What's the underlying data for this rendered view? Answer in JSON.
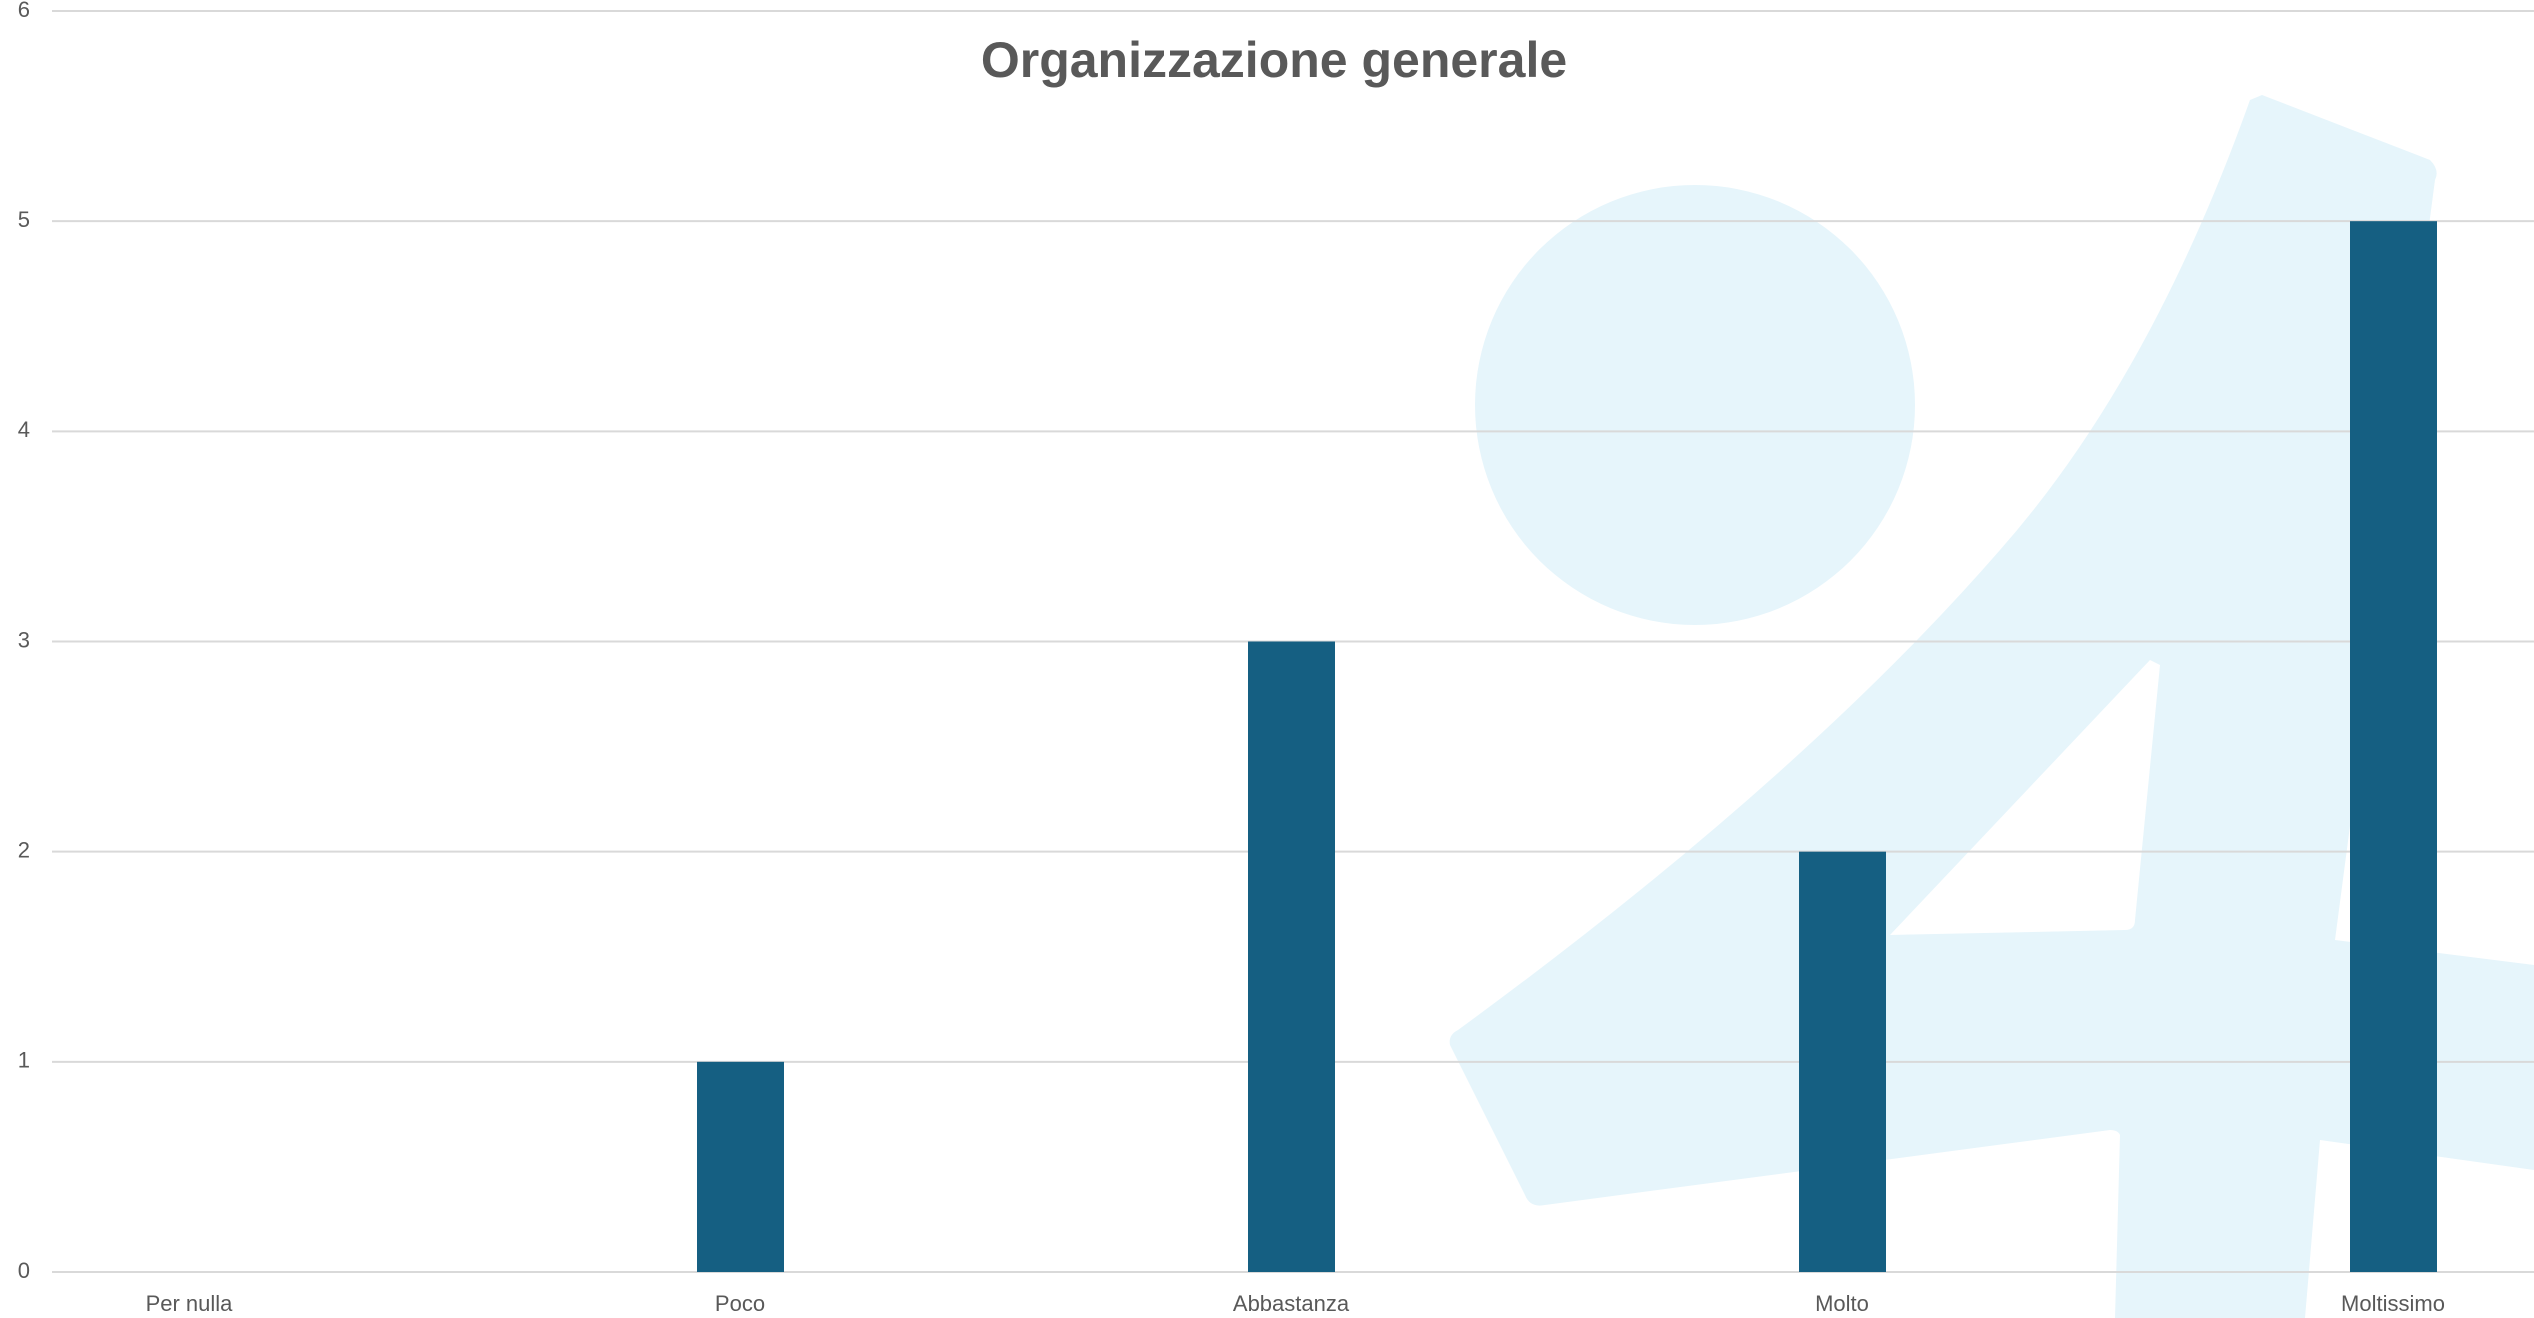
{
  "chart_data": {
    "type": "bar",
    "title": "Organizzazione generale",
    "categories": [
      "Per nulla",
      "Poco",
      "Abbastanza",
      "Molto",
      "Moltissimo"
    ],
    "values": [
      0,
      1,
      3,
      2,
      5
    ],
    "color": "#155f82",
    "ylim": [
      0,
      6
    ],
    "yticks": [
      0,
      1,
      2,
      3,
      4,
      5,
      6
    ],
    "grid": true
  }
}
